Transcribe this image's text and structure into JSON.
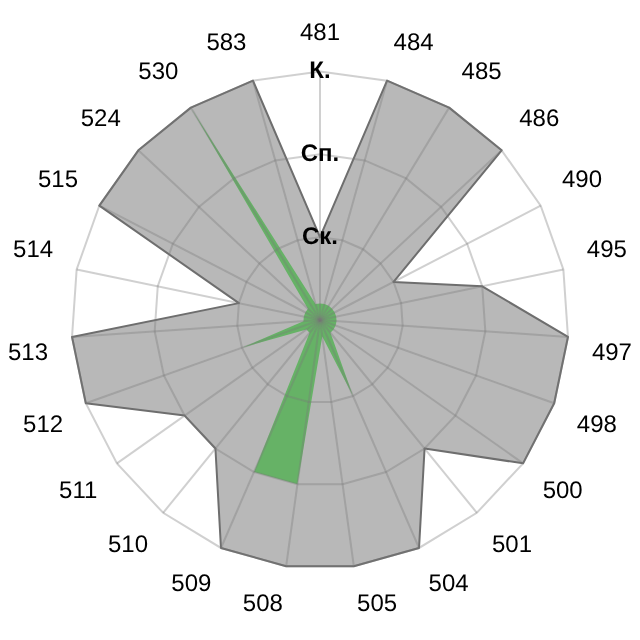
{
  "chart_data": {
    "type": "radar",
    "categories": [
      "481",
      "484",
      "485",
      "486",
      "490",
      "495",
      "497",
      "498",
      "500",
      "501",
      "504",
      "505",
      "508",
      "509",
      "510",
      "511",
      "512",
      "513",
      "514",
      "515",
      "524",
      "530",
      "583"
    ],
    "series": [
      {
        "color": "#b8b8b8",
        "values": [
          1,
          3,
          3,
          3,
          1,
          2,
          3,
          3,
          3,
          2,
          3,
          3,
          3,
          3,
          2,
          2,
          3,
          3,
          1,
          3,
          3,
          3,
          3
        ]
      },
      {
        "color": "#66b266",
        "values": [
          0.2,
          0.2,
          0.2,
          0.2,
          0.2,
          0.2,
          0.2,
          0.2,
          0.2,
          0.2,
          1,
          0.2,
          2,
          2,
          0.2,
          0.2,
          1,
          0.2,
          0.2,
          0.2,
          0.2,
          3,
          0.2
        ]
      }
    ],
    "ylim": [
      0,
      3
    ],
    "yticks": [
      {
        "value": 1,
        "label": "Ск."
      },
      {
        "value": 2,
        "label": "Сп."
      },
      {
        "value": 3,
        "label": "К."
      }
    ],
    "grid": true,
    "legend": false,
    "marker": "none"
  }
}
